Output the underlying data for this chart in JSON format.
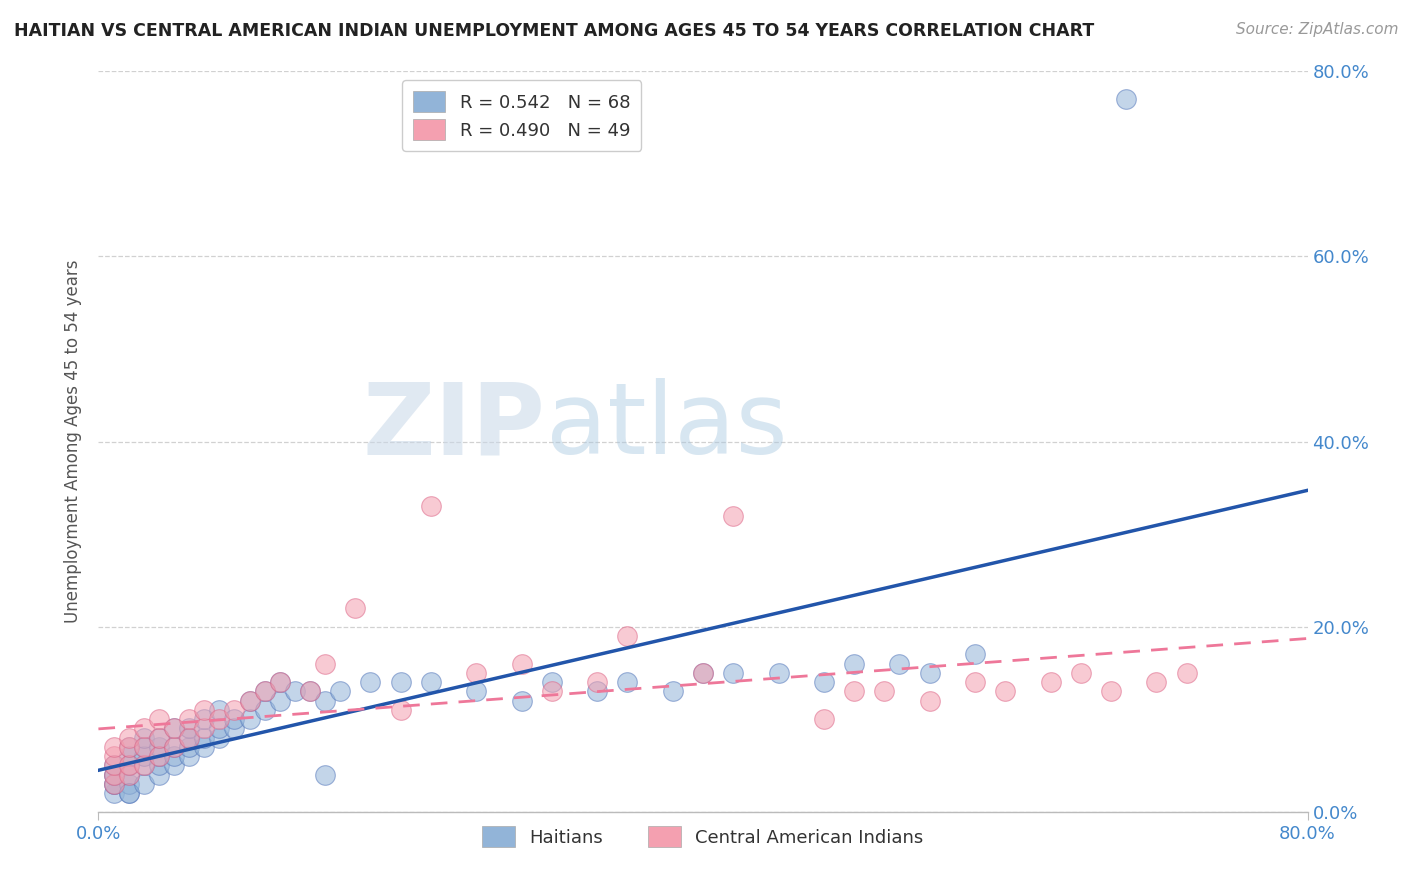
{
  "title": "HAITIAN VS CENTRAL AMERICAN INDIAN UNEMPLOYMENT AMONG AGES 45 TO 54 YEARS CORRELATION CHART",
  "source": "Source: ZipAtlas.com",
  "ylabel": "Unemployment Among Ages 45 to 54 years",
  "xlim": [
    0,
    0.8
  ],
  "ylim": [
    0,
    0.8
  ],
  "x_ticks": [
    0.0,
    0.8
  ],
  "x_tick_labels": [
    "0.0%",
    "80.0%"
  ],
  "y_ticks": [
    0.0,
    0.2,
    0.4,
    0.6,
    0.8
  ],
  "y_tick_labels": [
    "0.0%",
    "20.0%",
    "40.0%",
    "60.0%",
    "80.0%"
  ],
  "blue_color": "#92B4D8",
  "pink_color": "#F4A0B0",
  "blue_edge_color": "#5577BB",
  "pink_edge_color": "#DD6688",
  "blue_line_color": "#2255AA",
  "pink_line_color": "#EE7799",
  "legend_r1": "R = 0.542",
  "legend_n1": "N = 68",
  "legend_r2": "R = 0.490",
  "legend_n2": "N = 49",
  "legend_label1": "Haitians",
  "legend_label2": "Central American Indians",
  "watermark_zip": "ZIP",
  "watermark_atlas": "atlas",
  "background_color": "#FFFFFF",
  "grid_color": "#CCCCCC",
  "title_color": "#222222",
  "axis_label_color": "#555555",
  "tick_color": "#4488CC",
  "blue_scatter_x": [
    0.01,
    0.01,
    0.01,
    0.01,
    0.01,
    0.01,
    0.02,
    0.02,
    0.02,
    0.02,
    0.02,
    0.02,
    0.02,
    0.03,
    0.03,
    0.03,
    0.03,
    0.03,
    0.04,
    0.04,
    0.04,
    0.04,
    0.04,
    0.05,
    0.05,
    0.05,
    0.05,
    0.06,
    0.06,
    0.06,
    0.06,
    0.07,
    0.07,
    0.07,
    0.08,
    0.08,
    0.08,
    0.09,
    0.09,
    0.1,
    0.1,
    0.11,
    0.11,
    0.12,
    0.12,
    0.13,
    0.14,
    0.15,
    0.15,
    0.16,
    0.18,
    0.2,
    0.22,
    0.25,
    0.28,
    0.3,
    0.33,
    0.35,
    0.38,
    0.4,
    0.42,
    0.45,
    0.48,
    0.5,
    0.53,
    0.55,
    0.58,
    0.68
  ],
  "blue_scatter_y": [
    0.02,
    0.03,
    0.03,
    0.04,
    0.04,
    0.05,
    0.02,
    0.03,
    0.04,
    0.05,
    0.06,
    0.07,
    0.02,
    0.03,
    0.05,
    0.06,
    0.07,
    0.08,
    0.04,
    0.05,
    0.06,
    0.07,
    0.08,
    0.05,
    0.06,
    0.07,
    0.09,
    0.06,
    0.07,
    0.08,
    0.09,
    0.07,
    0.08,
    0.1,
    0.08,
    0.09,
    0.11,
    0.09,
    0.1,
    0.1,
    0.12,
    0.11,
    0.13,
    0.12,
    0.14,
    0.13,
    0.13,
    0.12,
    0.04,
    0.13,
    0.14,
    0.14,
    0.14,
    0.13,
    0.12,
    0.14,
    0.13,
    0.14,
    0.13,
    0.15,
    0.15,
    0.15,
    0.14,
    0.16,
    0.16,
    0.15,
    0.17,
    0.77
  ],
  "pink_scatter_x": [
    0.01,
    0.01,
    0.01,
    0.01,
    0.01,
    0.02,
    0.02,
    0.02,
    0.02,
    0.03,
    0.03,
    0.03,
    0.04,
    0.04,
    0.04,
    0.05,
    0.05,
    0.06,
    0.06,
    0.07,
    0.07,
    0.08,
    0.09,
    0.1,
    0.11,
    0.12,
    0.14,
    0.15,
    0.17,
    0.2,
    0.22,
    0.25,
    0.28,
    0.3,
    0.33,
    0.35,
    0.4,
    0.42,
    0.48,
    0.5,
    0.52,
    0.55,
    0.58,
    0.6,
    0.63,
    0.65,
    0.67,
    0.7,
    0.72
  ],
  "pink_scatter_y": [
    0.03,
    0.04,
    0.05,
    0.06,
    0.07,
    0.04,
    0.05,
    0.07,
    0.08,
    0.05,
    0.07,
    0.09,
    0.06,
    0.08,
    0.1,
    0.07,
    0.09,
    0.08,
    0.1,
    0.09,
    0.11,
    0.1,
    0.11,
    0.12,
    0.13,
    0.14,
    0.13,
    0.16,
    0.22,
    0.11,
    0.33,
    0.15,
    0.16,
    0.13,
    0.14,
    0.19,
    0.15,
    0.32,
    0.1,
    0.13,
    0.13,
    0.12,
    0.14,
    0.13,
    0.14,
    0.15,
    0.13,
    0.14,
    0.15
  ]
}
